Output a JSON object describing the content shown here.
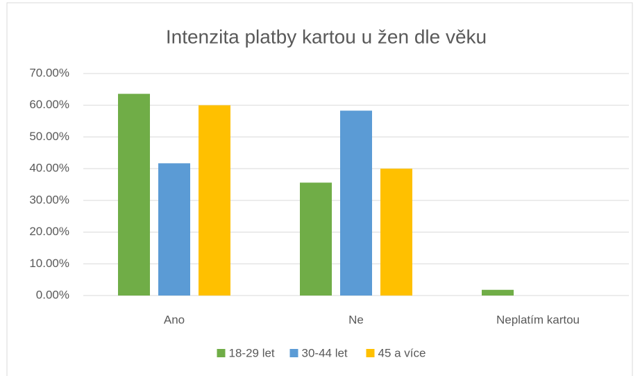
{
  "chart_data": {
    "type": "bar",
    "title": "Intenzita platby kartou u žen dle věku",
    "categories": [
      "Ano",
      "Ne",
      "Neplatím kartou"
    ],
    "series": [
      {
        "name": "18-29 let",
        "color": "#70ad47",
        "values": [
          63.6,
          35.6,
          1.8
        ]
      },
      {
        "name": "30-44 let",
        "color": "#5b9bd5",
        "values": [
          41.7,
          58.3,
          0
        ]
      },
      {
        "name": "45 a více",
        "color": "#ffc000",
        "values": [
          60,
          40,
          0
        ]
      }
    ],
    "ylim": [
      0,
      70
    ],
    "yticks": [
      {
        "value": 0,
        "label": "0.00%"
      },
      {
        "value": 10,
        "label": "10.00%"
      },
      {
        "value": 20,
        "label": "20.00%"
      },
      {
        "value": 30,
        "label": "30.00%"
      },
      {
        "value": 40,
        "label": "40.00%"
      },
      {
        "value": 50,
        "label": "50.00%"
      },
      {
        "value": 60,
        "label": "60.00%"
      },
      {
        "value": 70,
        "label": "70.00%"
      }
    ],
    "grid": true,
    "legend": "bottom"
  }
}
